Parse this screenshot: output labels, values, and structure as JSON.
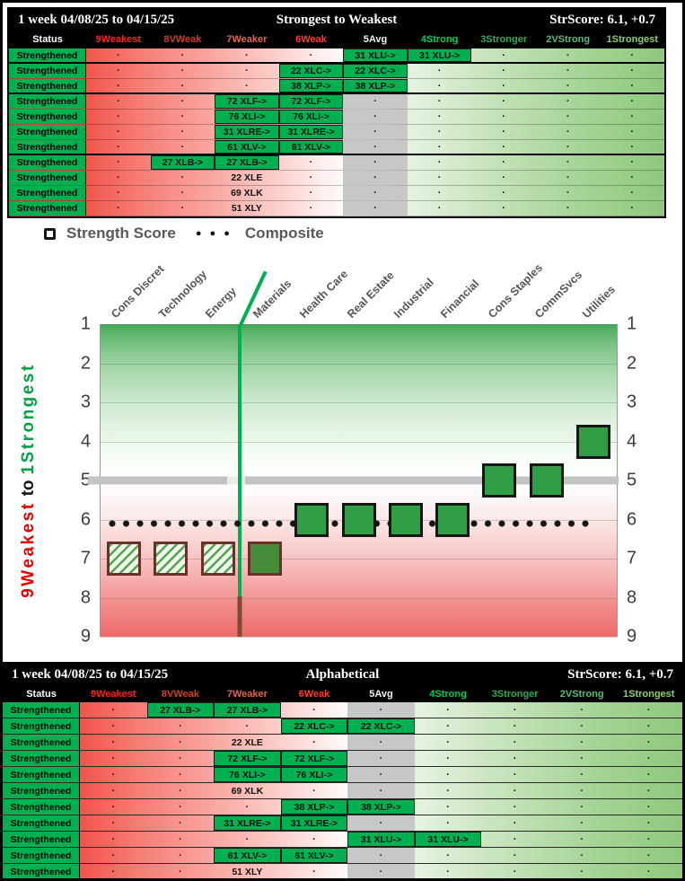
{
  "table_dot": "·",
  "table_columns": [
    {
      "label": "Status",
      "color": "#ffffff"
    },
    {
      "label": "9Weakest",
      "color": "#ff1f1f"
    },
    {
      "label": "8VWeak",
      "color": "#cc4125"
    },
    {
      "label": "7Weaker",
      "color": "#e06655"
    },
    {
      "label": "6Weak",
      "color": "#ff3b30"
    },
    {
      "label": "5Avg",
      "color": "#f2f2f2"
    },
    {
      "label": "4Strong",
      "color": "#00c853"
    },
    {
      "label": "3Stronger",
      "color": "#34a853"
    },
    {
      "label": "2VStrong",
      "color": "#5bb974"
    },
    {
      "label": "1Strongest",
      "color": "#8fce73"
    }
  ],
  "top_table": {
    "title_left": "1 week 04/08/25 to 04/15/25",
    "title_center": "Strongest to Weakest",
    "title_right": "StrScore: 6.1, +0.7",
    "rows": [
      {
        "status": "Strengthened",
        "group_end": true,
        "cells": [
          null,
          null,
          null,
          null,
          {
            "t": "31 XLU->",
            "hl": true
          },
          {
            "t": "31 XLU->",
            "hl": true
          },
          null,
          null,
          null
        ]
      },
      {
        "status": "Strengthened",
        "group_end": false,
        "cells": [
          null,
          null,
          null,
          {
            "t": "22 XLC->",
            "hl": true
          },
          {
            "t": "22 XLC->",
            "hl": true
          },
          null,
          null,
          null,
          null
        ]
      },
      {
        "status": "Strengthened",
        "group_end": true,
        "cells": [
          null,
          null,
          null,
          {
            "t": "38 XLP->",
            "hl": true
          },
          {
            "t": "38 XLP->",
            "hl": true
          },
          null,
          null,
          null,
          null
        ]
      },
      {
        "status": "Strengthened",
        "group_end": false,
        "cells": [
          null,
          null,
          {
            "t": "72 XLF->",
            "hl": true
          },
          {
            "t": "72 XLF->",
            "hl": true
          },
          null,
          null,
          null,
          null,
          null
        ]
      },
      {
        "status": "Strengthened",
        "group_end": false,
        "cells": [
          null,
          null,
          {
            "t": "76 XLI->",
            "hl": true
          },
          {
            "t": "76 XLI->",
            "hl": true
          },
          null,
          null,
          null,
          null,
          null
        ]
      },
      {
        "status": "Strengthened",
        "group_end": false,
        "cells": [
          null,
          null,
          {
            "t": "31 XLRE->",
            "hl": true
          },
          {
            "t": "31 XLRE->",
            "hl": true
          },
          null,
          null,
          null,
          null,
          null
        ]
      },
      {
        "status": "Strengthened",
        "group_end": true,
        "cells": [
          null,
          null,
          {
            "t": "61 XLV->",
            "hl": true
          },
          {
            "t": "61 XLV->",
            "hl": true
          },
          null,
          null,
          null,
          null,
          null
        ]
      },
      {
        "status": "Strengthened",
        "group_end": false,
        "cells": [
          null,
          {
            "t": "27 XLB->",
            "hl": true
          },
          {
            "t": "27 XLB->",
            "hl": true
          },
          null,
          null,
          null,
          null,
          null,
          null
        ]
      },
      {
        "status": "Strengthened",
        "group_end": false,
        "cells": [
          null,
          null,
          {
            "t": "22 XLE",
            "hl": false
          },
          null,
          null,
          null,
          null,
          null,
          null
        ]
      },
      {
        "status": "Strengthened",
        "group_end": false,
        "cells": [
          null,
          null,
          {
            "t": "69 XLK",
            "hl": false
          },
          null,
          null,
          null,
          null,
          null,
          null
        ]
      },
      {
        "status": "Strengthened",
        "group_end": false,
        "cells": [
          null,
          null,
          {
            "t": "51 XLY",
            "hl": false
          },
          null,
          null,
          null,
          null,
          null,
          null
        ]
      }
    ]
  },
  "bottom_table": {
    "title_left": "1 week 04/08/25 to 04/15/25",
    "title_center": "Alphabetical",
    "title_right": "StrScore: 6.1, +0.7",
    "rows": [
      {
        "status": "Strengthened",
        "cells": [
          null,
          {
            "t": "27 XLB->",
            "hl": true
          },
          {
            "t": "27 XLB->",
            "hl": true
          },
          null,
          null,
          null,
          null,
          null,
          null
        ]
      },
      {
        "status": "Strengthened",
        "cells": [
          null,
          null,
          null,
          {
            "t": "22 XLC->",
            "hl": true
          },
          {
            "t": "22 XLC->",
            "hl": true
          },
          null,
          null,
          null,
          null
        ]
      },
      {
        "status": "Strengthened",
        "cells": [
          null,
          null,
          {
            "t": "22 XLE",
            "hl": false
          },
          null,
          null,
          null,
          null,
          null,
          null
        ]
      },
      {
        "status": "Strengthened",
        "cells": [
          null,
          null,
          {
            "t": "72 XLF->",
            "hl": true
          },
          {
            "t": "72 XLF->",
            "hl": true
          },
          null,
          null,
          null,
          null,
          null
        ]
      },
      {
        "status": "Strengthened",
        "cells": [
          null,
          null,
          {
            "t": "76 XLI->",
            "hl": true
          },
          {
            "t": "76 XLI->",
            "hl": true
          },
          null,
          null,
          null,
          null,
          null
        ]
      },
      {
        "status": "Strengthened",
        "cells": [
          null,
          null,
          {
            "t": "69 XLK",
            "hl": false
          },
          null,
          null,
          null,
          null,
          null,
          null
        ]
      },
      {
        "status": "Strengthened",
        "cells": [
          null,
          null,
          null,
          {
            "t": "38 XLP->",
            "hl": true
          },
          {
            "t": "38 XLP->",
            "hl": true
          },
          null,
          null,
          null,
          null
        ]
      },
      {
        "status": "Strengthened",
        "cells": [
          null,
          null,
          {
            "t": "31 XLRE->",
            "hl": true
          },
          {
            "t": "31 XLRE->",
            "hl": true
          },
          null,
          null,
          null,
          null,
          null
        ]
      },
      {
        "status": "Strengthened",
        "cells": [
          null,
          null,
          null,
          null,
          {
            "t": "31 XLU->",
            "hl": true
          },
          {
            "t": "31 XLU->",
            "hl": true
          },
          null,
          null,
          null
        ]
      },
      {
        "status": "Strengthened",
        "cells": [
          null,
          null,
          {
            "t": "61 XLV->",
            "hl": true
          },
          {
            "t": "61 XLV->",
            "hl": true
          },
          null,
          null,
          null,
          null,
          null
        ]
      },
      {
        "status": "Strengthened",
        "cells": [
          null,
          null,
          {
            "t": "51 XLY",
            "hl": false
          },
          null,
          null,
          null,
          null,
          null,
          null
        ]
      }
    ]
  },
  "chart_data": {
    "type": "scatter",
    "legend": [
      "Strength Score",
      "Composite"
    ],
    "composite_dots_icon": "● ● ●",
    "categories": [
      "Cons Discret",
      "Technology",
      "Energy",
      "Materials",
      "Health Care",
      "Real Estate",
      "Industrial",
      "Financial",
      "Cons Staples",
      "CommSvcs",
      "Utilities"
    ],
    "strength_scores": [
      7,
      7,
      7,
      7,
      6,
      6,
      6,
      6,
      5,
      5,
      4
    ],
    "marker_styles": [
      "hatched",
      "hatched",
      "hatched",
      "solid-brown",
      "solid",
      "solid",
      "solid",
      "solid",
      "solid",
      "solid",
      "solid"
    ],
    "composite_score": 6.1,
    "average_band_rank": 5,
    "y_ticks": [
      1,
      2,
      3,
      4,
      5,
      6,
      7,
      8,
      9
    ],
    "ylim": [
      1,
      9
    ],
    "y_axis_inverted": true,
    "axis_label": {
      "weak": "9Weakest",
      "mid": "to",
      "strong": "1Strongest"
    },
    "highlight_line_frac": 0.27,
    "colors": {
      "strength_green": "#00b050",
      "marker_solid": "#2f9e44",
      "marker_border": "#161616",
      "marker_border_brown": "#6b3125",
      "band_gray": "#c3c3c3",
      "composite_dot": "#161616"
    }
  }
}
